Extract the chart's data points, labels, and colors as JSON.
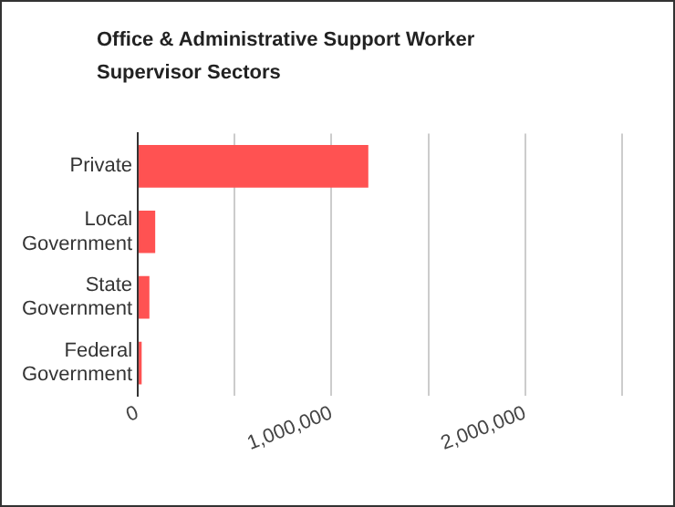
{
  "chart_data": {
    "type": "bar",
    "orientation": "horizontal",
    "title": "Office & Administrative Support Worker Supervisor Sectors",
    "categories": [
      "Private",
      "Local Government",
      "State Government",
      "Federal Government"
    ],
    "values": [
      1190000,
      90000,
      60000,
      20000
    ],
    "color": "#ff5252",
    "xlim": [
      0,
      2500000
    ],
    "xticks": [
      0,
      {
        "value": 500000,
        "label": null
      },
      {
        "value": 1000000,
        "label": "1,000,000"
      },
      {
        "value": 1500000,
        "label": null
      },
      {
        "value": 2000000,
        "label": "2,000,000"
      },
      {
        "value": 2500000,
        "label": null
      }
    ],
    "grid": "x",
    "legend": false
  }
}
